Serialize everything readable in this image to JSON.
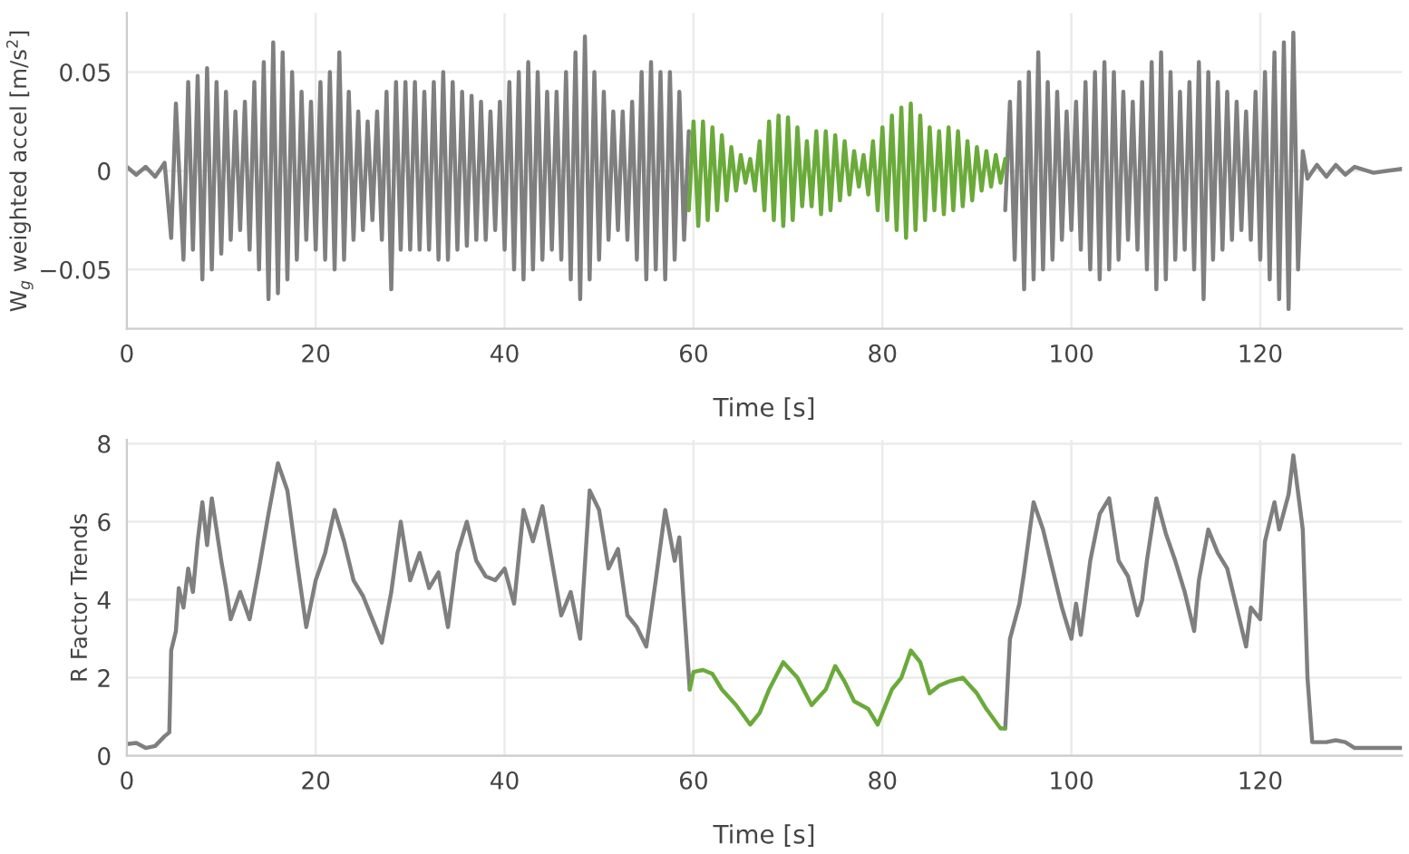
{
  "chart_data": [
    {
      "type": "line",
      "xlabel": "Time [s]",
      "ylabel": "W$_{g}$ weighted accel [m/s$^{2}$]",
      "xlim": [
        0,
        135
      ],
      "ylim": [
        -0.08,
        0.08
      ],
      "xticks": [
        0,
        20,
        40,
        60,
        80,
        100,
        120
      ],
      "yticks": [
        {
          "value": -0.05,
          "label": "−0.05"
        },
        {
          "value": 0,
          "label": "0"
        },
        {
          "value": 0.05,
          "label": "0.05"
        }
      ],
      "grid": true,
      "series": [
        {
          "color": "#7f7f7f",
          "x": [
            0,
            1,
            2,
            3,
            4,
            4.7,
            5.2,
            6,
            6.5,
            7,
            7.5,
            8,
            8.5,
            9,
            9.5,
            10,
            10.5,
            11,
            11.5,
            12,
            12.5,
            13,
            13.5,
            14,
            14.5,
            15,
            15.5,
            16,
            16.5,
            17,
            17.5,
            18,
            18.5,
            19,
            19.5,
            20,
            20.5,
            21,
            21.5,
            22,
            22.5,
            23,
            23.5,
            24,
            24.5,
            25,
            25.5,
            26,
            26.5,
            27,
            27.5,
            28,
            28.5,
            29,
            29.5,
            30,
            30.5,
            31,
            31.5,
            32,
            32.5,
            33,
            33.5,
            34,
            34.5,
            35,
            35.5,
            36,
            36.5,
            37,
            37.5,
            38,
            38.5,
            39,
            39.5,
            40,
            40.5,
            41,
            41.5,
            42,
            42.5,
            43,
            43.5,
            44,
            44.5,
            45,
            45.5,
            46,
            46.5,
            47,
            47.5,
            48,
            48.5,
            49,
            49.5,
            50,
            50.5,
            51,
            51.5,
            52,
            52.5,
            53,
            53.5,
            54,
            54.5,
            55,
            55.5,
            56,
            56.5,
            57,
            57.5,
            58,
            58.5,
            59,
            59.5,
            76,
            93,
            93.5,
            94,
            94.5,
            95,
            95.5,
            96,
            96.5,
            97,
            97.5,
            98,
            98.5,
            99,
            99.5,
            100,
            100.5,
            101,
            101.5,
            102,
            102.5,
            103,
            103.5,
            104,
            104.5,
            105,
            105.5,
            106,
            106.5,
            107,
            107.5,
            108,
            108.5,
            109,
            109.5,
            110,
            110.5,
            111,
            111.5,
            112,
            112.5,
            113,
            113.5,
            114,
            114.5,
            115,
            115.5,
            116,
            116.5,
            117,
            117.5,
            118,
            118.5,
            119,
            119.5,
            120,
            120.5,
            121,
            121.5,
            122,
            122.5,
            123,
            123.5,
            124,
            124.5,
            125,
            126,
            127,
            128,
            129,
            130,
            132,
            135
          ],
          "values": [
            0.002,
            -0.002,
            0.002,
            -0.003,
            0.004,
            -0.034,
            0.034,
            -0.045,
            0.045,
            -0.04,
            0.048,
            -0.055,
            0.052,
            -0.05,
            0.045,
            -0.042,
            0.04,
            -0.035,
            0.03,
            -0.03,
            0.035,
            -0.04,
            0.045,
            -0.05,
            0.055,
            -0.065,
            0.065,
            -0.062,
            0.06,
            -0.055,
            0.05,
            -0.045,
            0.04,
            -0.035,
            0.035,
            -0.04,
            0.045,
            -0.045,
            0.05,
            -0.05,
            0.06,
            -0.045,
            0.04,
            -0.035,
            0.03,
            -0.03,
            0.025,
            -0.025,
            0.03,
            -0.035,
            0.04,
            -0.06,
            0.045,
            -0.04,
            0.045,
            -0.04,
            0.045,
            -0.04,
            0.04,
            -0.04,
            0.045,
            -0.045,
            0.05,
            -0.045,
            0.045,
            -0.04,
            0.04,
            -0.038,
            0.038,
            -0.035,
            0.035,
            -0.035,
            0.03,
            -0.03,
            0.035,
            -0.04,
            0.045,
            -0.05,
            0.05,
            -0.055,
            0.055,
            -0.05,
            0.05,
            -0.045,
            0.04,
            -0.04,
            0.04,
            -0.045,
            0.05,
            -0.055,
            0.06,
            -0.065,
            0.068,
            -0.055,
            0.05,
            -0.045,
            0.04,
            -0.035,
            0.03,
            -0.03,
            0.03,
            -0.035,
            0.035,
            -0.045,
            0.05,
            -0.055,
            0.055,
            -0.05,
            0.05,
            -0.055,
            0.05,
            -0.045,
            0.04,
            -0.035,
            0.02,
            null,
            -0.02,
            0.035,
            -0.045,
            0.045,
            -0.06,
            0.05,
            -0.055,
            0.06,
            -0.05,
            0.045,
            -0.045,
            0.04,
            -0.035,
            0.03,
            -0.03,
            0.035,
            -0.04,
            0.045,
            -0.05,
            0.05,
            -0.055,
            0.055,
            -0.05,
            0.05,
            -0.045,
            0.04,
            -0.035,
            0.035,
            -0.04,
            0.045,
            -0.05,
            0.055,
            -0.06,
            0.06,
            -0.055,
            0.05,
            -0.045,
            0.04,
            -0.04,
            0.045,
            -0.05,
            0.055,
            -0.065,
            0.05,
            -0.045,
            0.045,
            -0.04,
            0.04,
            -0.035,
            0.035,
            -0.03,
            0.03,
            -0.035,
            0.04,
            -0.045,
            0.05,
            -0.055,
            0.06,
            -0.065,
            0.065,
            -0.07,
            0.07,
            -0.05,
            0.01,
            -0.004,
            0.003,
            -0.003,
            0.003,
            -0.002,
            0.002,
            -0.001,
            0.001
          ]
        },
        {
          "color": "#6aaa3a",
          "x": [
            59.5,
            60,
            60.5,
            61,
            61.5,
            62,
            62.5,
            63,
            63.5,
            64,
            64.5,
            65,
            65.5,
            66,
            66.5,
            67,
            67.5,
            68,
            68.5,
            69,
            69.5,
            70,
            70.5,
            71,
            71.5,
            72,
            72.5,
            73,
            73.5,
            74,
            74.5,
            75,
            75.5,
            76,
            76.5,
            77,
            77.5,
            78,
            78.5,
            79,
            79.5,
            80,
            80.5,
            81,
            81.5,
            82,
            82.5,
            83,
            83.5,
            84,
            84.5,
            85,
            85.5,
            86,
            86.5,
            87,
            87.5,
            88,
            88.5,
            89,
            89.5,
            90,
            90.5,
            91,
            91.5,
            92,
            92.5,
            93
          ],
          "values": [
            -0.02,
            0.025,
            -0.028,
            0.025,
            -0.025,
            0.022,
            -0.02,
            0.018,
            -0.015,
            0.012,
            -0.01,
            0.008,
            -0.006,
            0.006,
            -0.01,
            0.015,
            -0.02,
            0.025,
            -0.025,
            0.028,
            -0.028,
            0.027,
            -0.025,
            0.022,
            -0.018,
            0.015,
            -0.018,
            0.02,
            -0.022,
            0.02,
            -0.02,
            0.018,
            -0.015,
            0.015,
            -0.012,
            0.01,
            -0.008,
            0.008,
            -0.012,
            0.015,
            -0.02,
            0.022,
            -0.025,
            0.028,
            -0.03,
            0.032,
            -0.034,
            0.034,
            -0.03,
            0.028,
            -0.025,
            0.022,
            -0.02,
            0.02,
            -0.022,
            0.022,
            -0.02,
            0.02,
            -0.018,
            0.015,
            -0.015,
            0.012,
            -0.01,
            0.01,
            -0.008,
            0.008,
            -0.006,
            0.006
          ]
        }
      ]
    },
    {
      "type": "line",
      "xlabel": "Time [s]",
      "ylabel": "R Factor Trends",
      "xlim": [
        0,
        135
      ],
      "ylim": [
        0,
        8.1
      ],
      "xticks": [
        0,
        20,
        40,
        60,
        80,
        100,
        120
      ],
      "yticks": [
        0,
        2,
        4,
        6,
        8
      ],
      "grid": true,
      "series": [
        {
          "color": "#7f7f7f",
          "x": [
            0,
            1,
            2,
            3,
            4,
            4.5,
            4.7,
            5.2,
            5.5,
            6,
            6.5,
            7,
            7.5,
            8,
            8.5,
            9,
            9.5,
            10,
            10.5,
            11,
            12,
            13,
            14,
            15,
            16,
            17,
            18,
            19,
            20,
            21,
            22,
            23,
            24,
            25,
            26,
            27,
            28,
            29,
            30,
            31,
            32,
            33,
            34,
            35,
            36,
            37,
            38,
            39,
            40,
            41,
            42,
            43,
            44,
            45,
            46,
            47,
            48,
            49,
            50,
            51,
            52,
            53,
            54,
            55,
            56,
            57,
            58,
            58.5,
            59,
            59.6,
            76,
            93,
            93.5,
            94.5,
            95,
            96,
            97,
            98,
            99,
            100,
            100.5,
            101,
            102,
            103,
            104,
            105,
            106,
            107,
            107.5,
            108,
            109,
            110,
            111,
            112,
            113,
            113.5,
            114.5,
            115.5,
            116.5,
            117.5,
            118.5,
            119,
            120,
            120.5,
            121.5,
            122,
            123,
            123.5,
            124.5,
            125,
            125.5,
            127,
            128,
            129,
            130,
            135
          ],
          "values": [
            0.3,
            0.33,
            0.2,
            0.25,
            0.5,
            0.6,
            2.7,
            3.2,
            4.3,
            3.8,
            4.8,
            4.2,
            5.5,
            6.5,
            5.4,
            6.6,
            5.8,
            5.0,
            4.3,
            3.5,
            4.2,
            3.5,
            4.8,
            6.2,
            7.5,
            6.8,
            5.0,
            3.3,
            4.5,
            5.2,
            6.3,
            5.5,
            4.5,
            4.1,
            3.5,
            2.9,
            4.2,
            6.0,
            4.5,
            5.2,
            4.3,
            4.7,
            3.3,
            5.2,
            6.0,
            5.0,
            4.6,
            4.5,
            4.8,
            3.9,
            6.3,
            5.5,
            6.4,
            5.0,
            3.6,
            4.2,
            3.0,
            6.8,
            6.3,
            4.8,
            5.3,
            3.6,
            3.3,
            2.8,
            4.5,
            6.3,
            5.0,
            5.6,
            3.8,
            1.7,
            null,
            0.7,
            3.0,
            3.9,
            4.7,
            6.5,
            5.8,
            4.8,
            3.8,
            3.0,
            3.9,
            3.1,
            5.0,
            6.2,
            6.6,
            5.0,
            4.6,
            3.6,
            4.0,
            5.0,
            6.6,
            5.7,
            5.0,
            4.2,
            3.2,
            4.5,
            5.8,
            5.2,
            4.8,
            3.8,
            2.8,
            3.8,
            3.5,
            5.5,
            6.5,
            5.8,
            6.7,
            7.7,
            5.8,
            2.0,
            0.35,
            0.35,
            0.4,
            0.35,
            0.2,
            0.2
          ]
        },
        {
          "color": "#6aaa3a",
          "x": [
            59.6,
            60,
            61,
            62,
            63,
            64.5,
            66,
            67,
            68,
            69.5,
            71,
            72.5,
            74,
            75,
            76,
            77,
            78.5,
            79.5,
            81,
            82,
            83,
            84,
            85,
            86,
            87,
            88.5,
            90,
            91,
            92.5,
            93
          ],
          "values": [
            1.7,
            2.15,
            2.2,
            2.1,
            1.7,
            1.3,
            0.8,
            1.1,
            1.7,
            2.4,
            2.0,
            1.3,
            1.7,
            2.3,
            1.9,
            1.4,
            1.2,
            0.8,
            1.7,
            2.0,
            2.7,
            2.4,
            1.6,
            1.8,
            1.9,
            2.0,
            1.6,
            1.2,
            0.7,
            0.7
          ]
        }
      ]
    }
  ]
}
